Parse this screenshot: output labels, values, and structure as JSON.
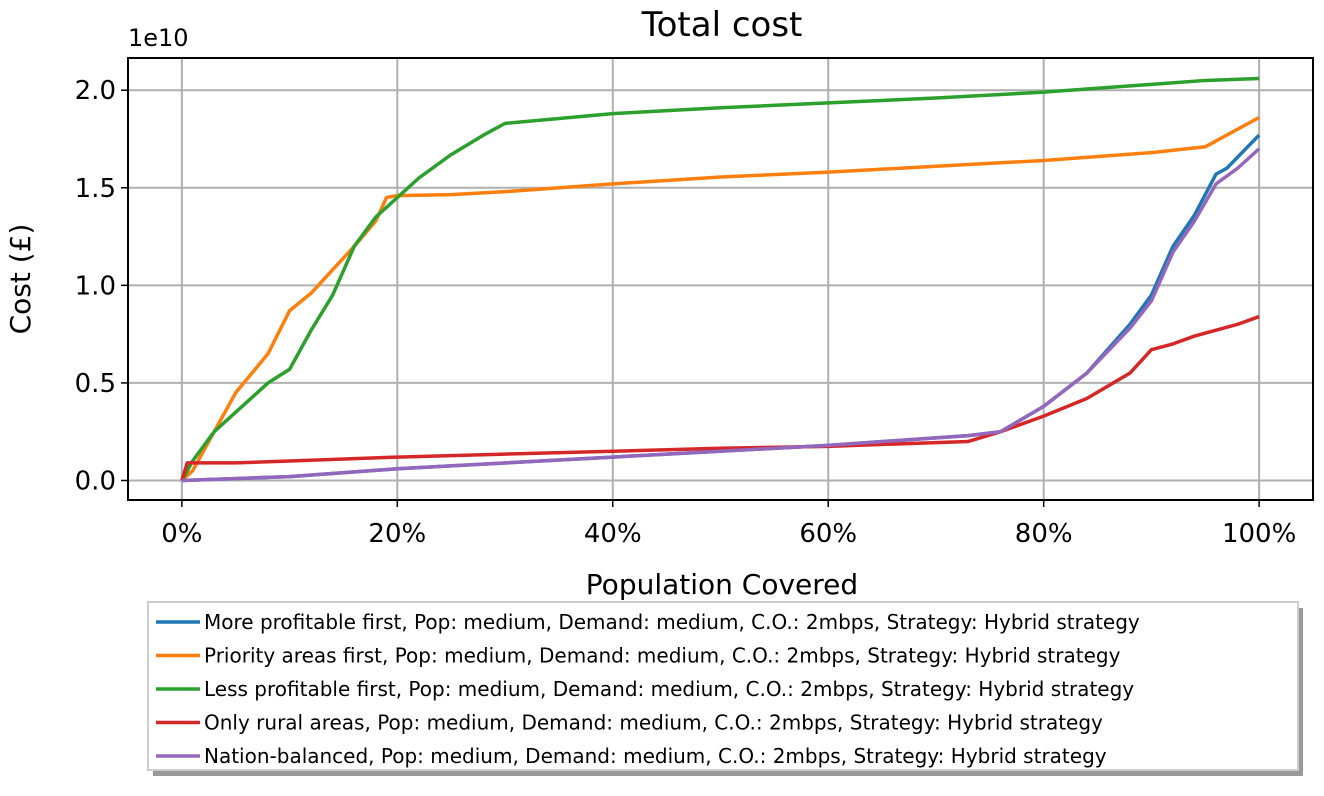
{
  "chart_data": {
    "type": "line",
    "title": "Total cost",
    "offset_label": "1e10",
    "xlabel": "Population Covered",
    "ylabel": "Cost (£)",
    "xlim": [
      -5,
      105
    ],
    "ylim": [
      -0.1,
      2.165
    ],
    "xticks": [
      {
        "value": 0,
        "label": "0%"
      },
      {
        "value": 20,
        "label": "20%"
      },
      {
        "value": 40,
        "label": "40%"
      },
      {
        "value": 60,
        "label": "60%"
      },
      {
        "value": 80,
        "label": "80%"
      },
      {
        "value": 100,
        "label": "100%"
      }
    ],
    "yticks": [
      {
        "value": 0,
        "label": "0.0"
      },
      {
        "value": 0.5,
        "label": "0.5"
      },
      {
        "value": 1,
        "label": "1.0"
      },
      {
        "value": 1.5,
        "label": "1.5"
      },
      {
        "value": 2,
        "label": "2.0"
      }
    ],
    "grid": true,
    "series": [
      {
        "name": "More profitable first, Pop: medium, Demand: medium, C.O.: 2mbps, Strategy: Hybrid strategy",
        "color": "#1f77b4",
        "x": [
          0,
          10,
          20,
          40,
          60,
          73,
          76,
          80,
          84,
          88,
          90,
          92,
          94,
          96,
          97,
          100
        ],
        "values": [
          0,
          0.02,
          0.06,
          0.12,
          0.18,
          0.23,
          0.25,
          0.38,
          0.55,
          0.8,
          0.95,
          1.2,
          1.36,
          1.57,
          1.6,
          1.77
        ]
      },
      {
        "name": "Priority areas first, Pop: medium, Demand: medium, C.O.: 2mbps, Strategy: Hybrid strategy",
        "color": "#ff7f0e",
        "x": [
          0,
          1,
          3,
          5,
          8,
          10,
          12,
          14,
          16,
          18,
          19,
          20,
          25,
          30,
          40,
          50,
          60,
          70,
          80,
          90,
          95,
          100
        ],
        "values": [
          0,
          0.05,
          0.25,
          0.45,
          0.65,
          0.87,
          0.96,
          1.08,
          1.2,
          1.33,
          1.45,
          1.46,
          1.465,
          1.48,
          1.52,
          1.555,
          1.58,
          1.61,
          1.64,
          1.68,
          1.71,
          1.86
        ]
      },
      {
        "name": "Less profitable first, Pop: medium, Demand: medium, C.O.: 2mbps, Strategy: Hybrid strategy",
        "color": "#2ca02c",
        "x": [
          0,
          1,
          3,
          5,
          8,
          10,
          12,
          14,
          16,
          18,
          20,
          22,
          25,
          28,
          30,
          40,
          50,
          60,
          70,
          80,
          90,
          95,
          100
        ],
        "values": [
          0,
          0.1,
          0.25,
          0.35,
          0.5,
          0.57,
          0.77,
          0.95,
          1.2,
          1.35,
          1.45,
          1.55,
          1.67,
          1.77,
          1.83,
          1.88,
          1.91,
          1.935,
          1.96,
          1.99,
          2.03,
          2.05,
          2.06
        ]
      },
      {
        "name": "Only rural areas, Pop: medium, Demand: medium, C.O.: 2mbps, Strategy: Hybrid strategy",
        "color": "#d62728",
        "x": [
          0,
          0.5,
          5,
          10,
          20,
          30,
          40,
          50,
          60,
          73,
          76,
          80,
          84,
          88,
          90,
          92,
          94,
          96,
          98,
          100
        ],
        "values": [
          0,
          0.09,
          0.09,
          0.1,
          0.12,
          0.135,
          0.15,
          0.165,
          0.175,
          0.2,
          0.25,
          0.33,
          0.42,
          0.55,
          0.67,
          0.7,
          0.74,
          0.77,
          0.8,
          0.84
        ]
      },
      {
        "name": "Nation-balanced, Pop: medium, Demand: medium, C.O.: 2mbps, Strategy: Hybrid strategy",
        "color": "#9467bd",
        "x": [
          0,
          10,
          20,
          40,
          60,
          73,
          76,
          80,
          84,
          88,
          90,
          92,
          94,
          96,
          98,
          100
        ],
        "values": [
          0,
          0.02,
          0.06,
          0.12,
          0.18,
          0.23,
          0.25,
          0.38,
          0.55,
          0.78,
          0.92,
          1.17,
          1.33,
          1.52,
          1.6,
          1.7
        ]
      }
    ]
  }
}
